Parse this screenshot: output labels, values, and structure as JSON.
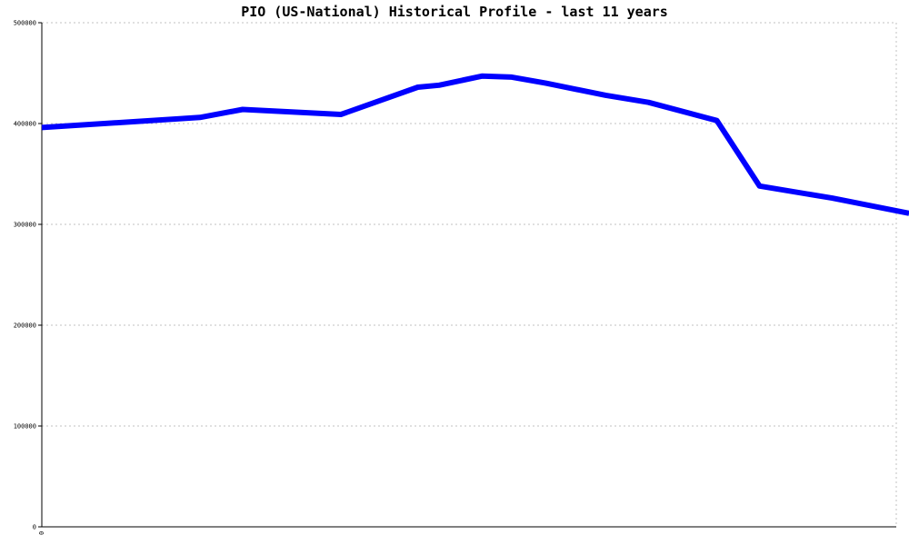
{
  "chart_data": {
    "type": "line",
    "title": "PIO (US-National) Historical Profile - last 11 years",
    "xlabel": "",
    "ylabel": "",
    "x_tick_labels": [
      "0"
    ],
    "y_ticks": [
      0,
      100000,
      200000,
      300000,
      400000,
      500000
    ],
    "ylim": [
      0,
      500000
    ],
    "xlim": [
      0,
      20
    ],
    "grid": true,
    "colors": {
      "line": "#0000ff",
      "grid": "#c0c0c0",
      "axis": "#000000"
    },
    "series": [
      {
        "x": [
          0,
          3.7,
          4.7,
          7,
          8.8,
          9.3,
          10.3,
          11,
          11.8,
          13.2,
          14.2,
          15.8,
          16.8,
          18.5,
          20.3
        ],
        "values": [
          396000,
          406000,
          414000,
          409000,
          436000,
          438000,
          447000,
          446000,
          440000,
          428000,
          421000,
          403000,
          338000,
          326000,
          311000
        ]
      }
    ]
  }
}
